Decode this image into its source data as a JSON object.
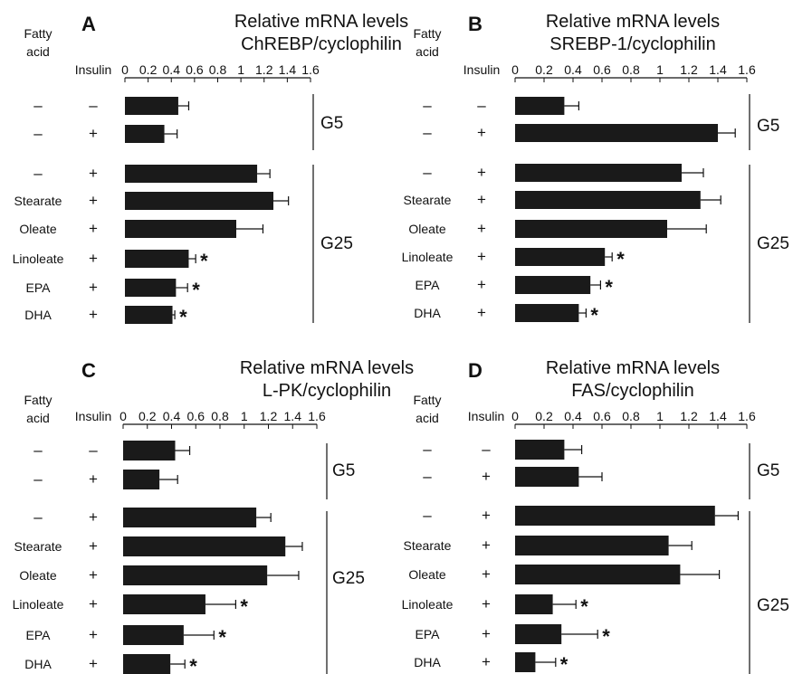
{
  "header": {
    "fatty_acid_line1": "Fatty",
    "fatty_acid_line2": "acid",
    "insulin": "Insulin"
  },
  "axis": {
    "ticks": [
      "0",
      "0.2",
      "0.4",
      "0.6",
      "0.8",
      "1",
      "1.2",
      "1.4",
      "1.6"
    ],
    "max": 1.6
  },
  "rows": [
    {
      "fatty_acid": "–",
      "insulin": "–"
    },
    {
      "fatty_acid": "–",
      "insulin": "+"
    },
    {
      "fatty_acid": "–",
      "insulin": "+"
    },
    {
      "fatty_acid": "Stearate",
      "insulin": "+"
    },
    {
      "fatty_acid": "Oleate",
      "insulin": "+"
    },
    {
      "fatty_acid": "Linoleate",
      "insulin": "+"
    },
    {
      "fatty_acid": "EPA",
      "insulin": "+"
    },
    {
      "fatty_acid": "DHA",
      "insulin": "+"
    }
  ],
  "groups": [
    "G5",
    "G25"
  ],
  "star_symbol": "*",
  "chart_data": [
    {
      "type": "bar",
      "orientation": "horizontal",
      "panel": "A",
      "title_line1": "Relative mRNA levels",
      "title_line2": "ChREBP/cyclophilin",
      "xlim": [
        0,
        1.6
      ],
      "categories": [
        "– / –",
        "– / +",
        "– / +",
        "Stearate / +",
        "Oleate / +",
        "Linoleate / +",
        "EPA / +",
        "DHA / +"
      ],
      "values": [
        0.46,
        0.34,
        1.14,
        1.28,
        0.96,
        0.55,
        0.44,
        0.41
      ],
      "errors": [
        0.09,
        0.11,
        0.11,
        0.13,
        0.23,
        0.06,
        0.1,
        0.02
      ],
      "significant": [
        false,
        false,
        false,
        false,
        false,
        true,
        true,
        true
      ]
    },
    {
      "type": "bar",
      "orientation": "horizontal",
      "panel": "B",
      "title_line1": "Relative mRNA levels",
      "title_line2": "SREBP-1/cyclophilin",
      "xlim": [
        0,
        1.6
      ],
      "categories": [
        "– / –",
        "– / +",
        "– / +",
        "Stearate / +",
        "Oleate / +",
        "Linoleate / +",
        "EPA / +",
        "DHA / +"
      ],
      "values": [
        0.34,
        1.4,
        1.15,
        1.28,
        1.05,
        0.62,
        0.52,
        0.44
      ],
      "errors": [
        0.1,
        0.12,
        0.15,
        0.14,
        0.27,
        0.05,
        0.07,
        0.05
      ],
      "significant": [
        false,
        false,
        false,
        false,
        false,
        true,
        true,
        true
      ]
    },
    {
      "type": "bar",
      "orientation": "horizontal",
      "panel": "C",
      "title_line1": "Relative mRNA levels",
      "title_line2": "L-PK/cyclophilin",
      "xlim": [
        0,
        1.6
      ],
      "categories": [
        "– / –",
        "– / +",
        "– / +",
        "Stearate / +",
        "Oleate / +",
        "Linoleate / +",
        "EPA / +",
        "DHA / +"
      ],
      "values": [
        0.43,
        0.3,
        1.1,
        1.34,
        1.19,
        0.68,
        0.5,
        0.39
      ],
      "errors": [
        0.12,
        0.15,
        0.12,
        0.14,
        0.26,
        0.25,
        0.25,
        0.12
      ],
      "significant": [
        false,
        false,
        false,
        false,
        false,
        true,
        true,
        true
      ]
    },
    {
      "type": "bar",
      "orientation": "horizontal",
      "panel": "D",
      "title_line1": "Relative mRNA levels",
      "title_line2": "FAS/cyclophilin",
      "xlim": [
        0,
        1.6
      ],
      "categories": [
        "– / –",
        "– / +",
        "– / +",
        "Stearate / +",
        "Oleate / +",
        "Linoleate / +",
        "EPA / +",
        "DHA / +"
      ],
      "values": [
        0.34,
        0.44,
        1.38,
        1.06,
        1.14,
        0.26,
        0.32,
        0.14
      ],
      "errors": [
        0.12,
        0.16,
        0.16,
        0.16,
        0.27,
        0.16,
        0.25,
        0.14
      ],
      "significant": [
        false,
        false,
        false,
        false,
        false,
        true,
        true,
        true
      ]
    }
  ]
}
